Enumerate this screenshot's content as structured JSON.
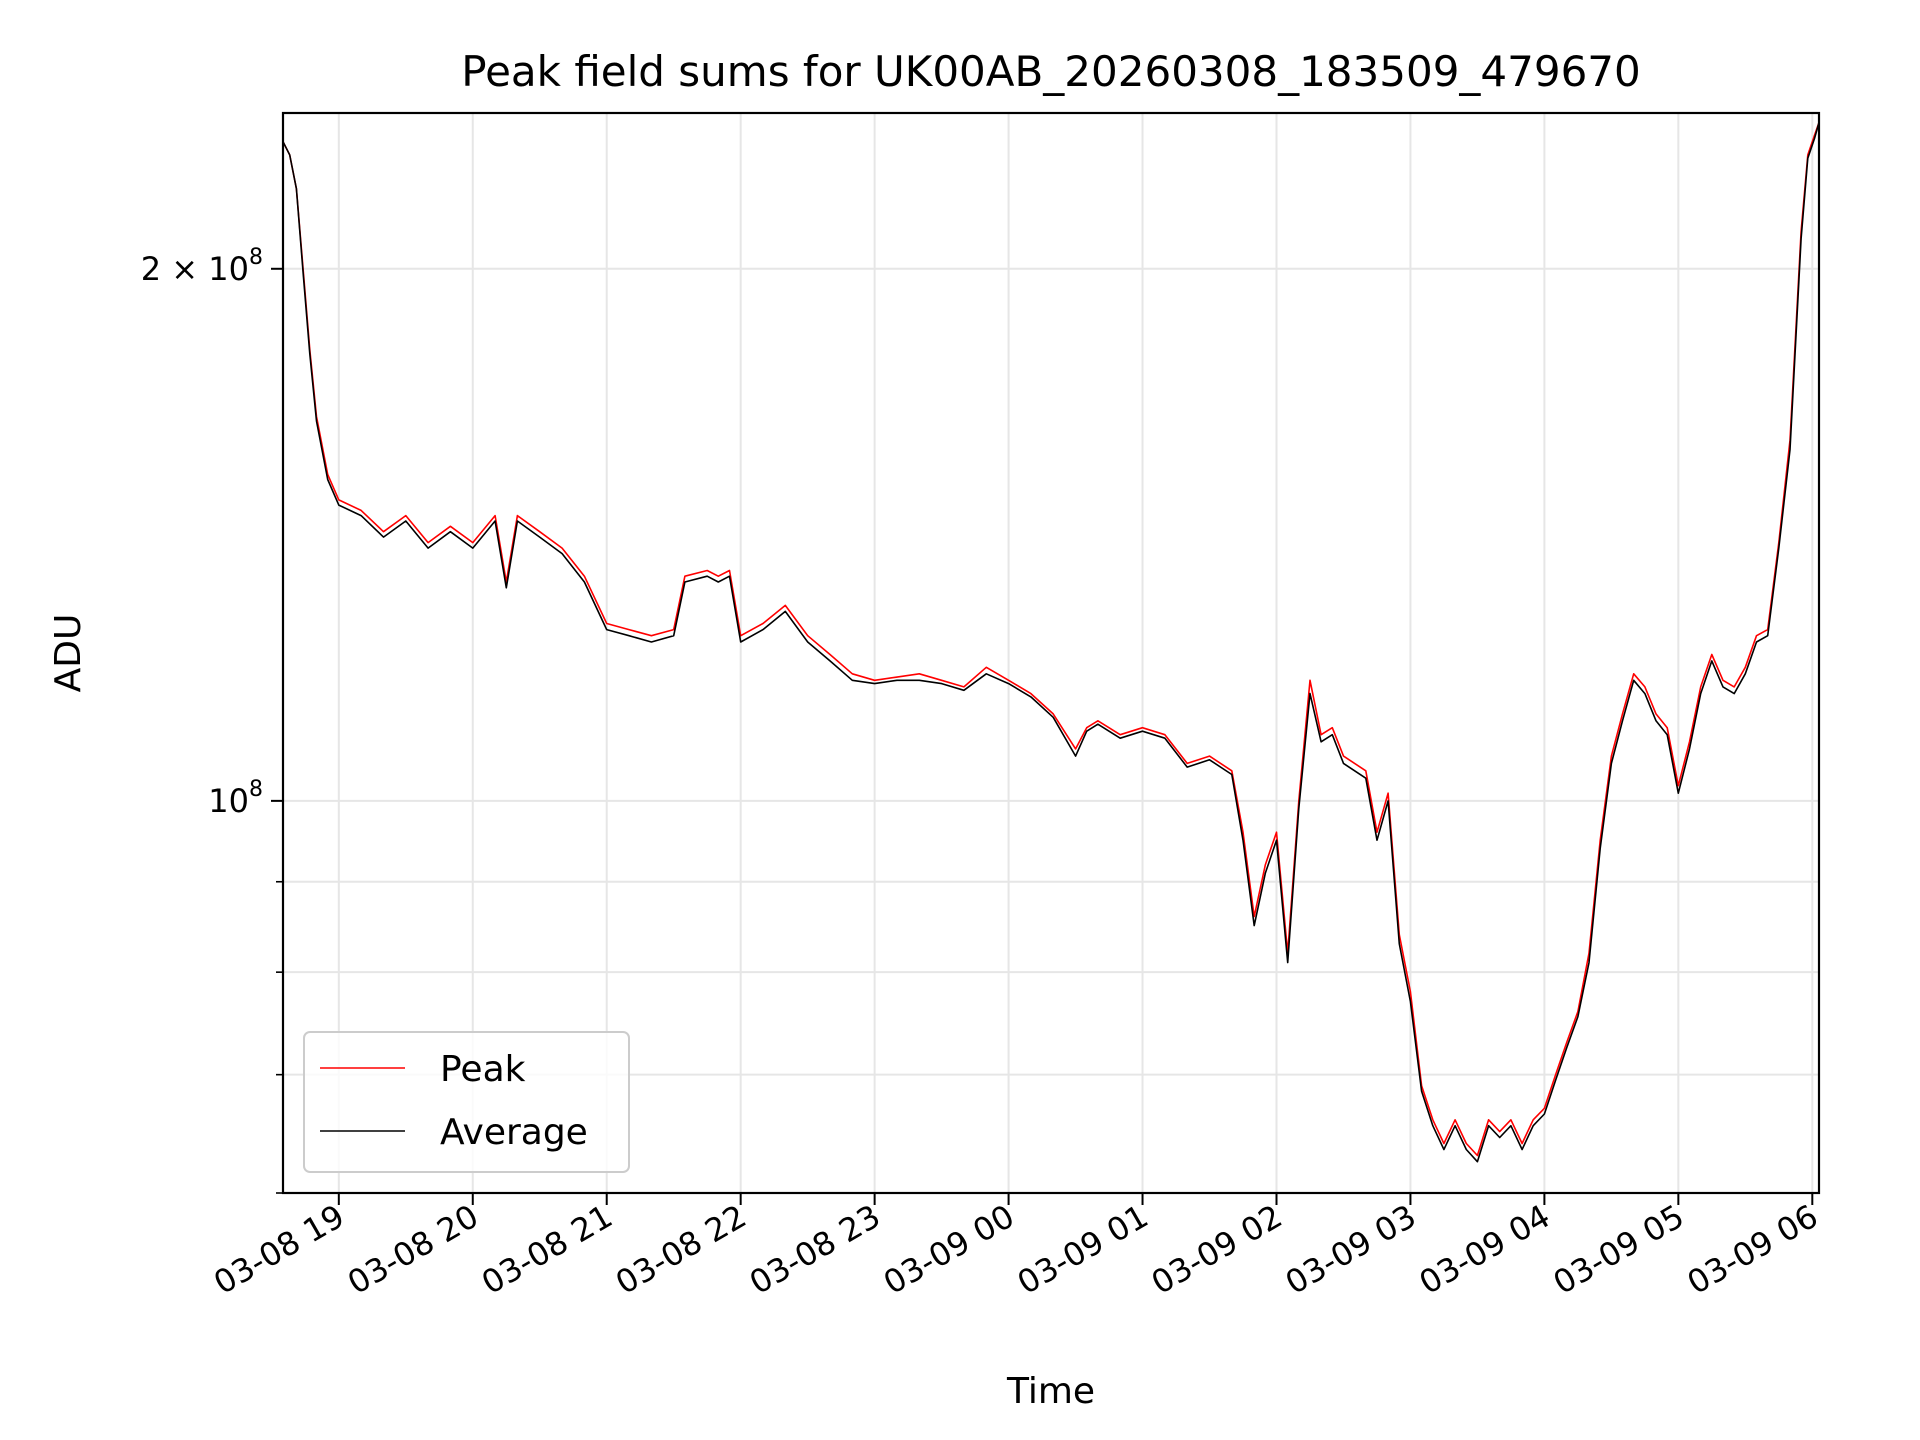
{
  "chart_data": {
    "type": "line",
    "title": "Peak field sums for UK00AB_20260308_183509_479670",
    "xlabel": "Time",
    "ylabel": "ADU",
    "y_scale": "log",
    "xlim": [
      "03-08 18:35",
      "03-09 06:03"
    ],
    "ylim": [
      60000000,
      245000000
    ],
    "x_ticks": [
      "03-08 19",
      "03-08 20",
      "03-08 21",
      "03-08 22",
      "03-08 23",
      "03-09 00",
      "03-09 01",
      "03-09 02",
      "03-09 03",
      "03-09 04",
      "03-09 05",
      "03-09 06"
    ],
    "y_ticks": [
      {
        "value": 200000000,
        "label_base": "2 × 10",
        "label_exp": "8"
      },
      {
        "value": 100000000,
        "label_base": "10",
        "label_exp": "8"
      }
    ],
    "grid": true,
    "legend_position": "lower-left",
    "x": [
      "03-08 18:35",
      "03-08 18:38",
      "03-08 18:41",
      "03-08 18:44",
      "03-08 18:47",
      "03-08 18:50",
      "03-08 18:55",
      "03-08 19:00",
      "03-08 19:10",
      "03-08 19:20",
      "03-08 19:30",
      "03-08 19:40",
      "03-08 19:50",
      "03-08 20:00",
      "03-08 20:10",
      "03-08 20:15",
      "03-08 20:20",
      "03-08 20:30",
      "03-08 20:40",
      "03-08 20:50",
      "03-08 21:00",
      "03-08 21:10",
      "03-08 21:20",
      "03-08 21:30",
      "03-08 21:35",
      "03-08 21:45",
      "03-08 21:50",
      "03-08 21:55",
      "03-08 22:00",
      "03-08 22:10",
      "03-08 22:20",
      "03-08 22:30",
      "03-08 22:40",
      "03-08 22:50",
      "03-08 23:00",
      "03-08 23:10",
      "03-08 23:20",
      "03-08 23:30",
      "03-08 23:40",
      "03-08 23:50",
      "03-09 00:00",
      "03-09 00:10",
      "03-09 00:20",
      "03-09 00:30",
      "03-09 00:35",
      "03-09 00:40",
      "03-09 00:50",
      "03-09 01:00",
      "03-09 01:10",
      "03-09 01:20",
      "03-09 01:30",
      "03-09 01:40",
      "03-09 01:45",
      "03-09 01:50",
      "03-09 01:55",
      "03-09 02:00",
      "03-09 02:05",
      "03-09 02:10",
      "03-09 02:15",
      "03-09 02:20",
      "03-09 02:25",
      "03-09 02:30",
      "03-09 02:40",
      "03-09 02:45",
      "03-09 02:50",
      "03-09 02:55",
      "03-09 03:00",
      "03-09 03:05",
      "03-09 03:10",
      "03-09 03:15",
      "03-09 03:20",
      "03-09 03:25",
      "03-09 03:30",
      "03-09 03:35",
      "03-09 03:40",
      "03-09 03:45",
      "03-09 03:50",
      "03-09 03:55",
      "03-09 04:00",
      "03-09 04:05",
      "03-09 04:10",
      "03-09 04:15",
      "03-09 04:20",
      "03-09 04:25",
      "03-09 04:30",
      "03-09 04:35",
      "03-09 04:40",
      "03-09 04:45",
      "03-09 04:50",
      "03-09 04:55",
      "03-09 05:00",
      "03-09 05:05",
      "03-09 05:10",
      "03-09 05:15",
      "03-09 05:20",
      "03-09 05:25",
      "03-09 05:30",
      "03-09 05:35",
      "03-09 05:40",
      "03-09 05:45",
      "03-09 05:50",
      "03-09 05:55",
      "03-09 05:58",
      "03-09 06:01",
      "03-09 06:03"
    ],
    "series": [
      {
        "name": "Peak",
        "color": "#ff0000",
        "values": [
          236000000,
          232000000,
          222000000,
          200000000,
          180000000,
          165000000,
          153000000,
          148000000,
          146000000,
          142000000,
          145000000,
          140000000,
          143000000,
          140000000,
          145000000,
          133000000,
          145000000,
          142000000,
          139000000,
          134000000,
          126000000,
          125000000,
          124000000,
          125000000,
          134000000,
          135000000,
          134000000,
          135000000,
          124000000,
          126000000,
          129000000,
          124000000,
          121000000,
          118000000,
          117000000,
          117500000,
          118000000,
          117000000,
          116000000,
          119000000,
          117000000,
          115000000,
          112000000,
          107000000,
          110000000,
          111000000,
          109000000,
          110000000,
          109000000,
          105000000,
          106000000,
          104000000,
          96000000,
          86000000,
          92000000,
          96000000,
          82000000,
          100000000,
          117000000,
          109000000,
          110000000,
          106000000,
          104000000,
          96000000,
          101000000,
          84000000,
          78000000,
          69000000,
          66000000,
          64000000,
          66000000,
          64000000,
          63000000,
          66000000,
          65000000,
          66000000,
          64000000,
          66000000,
          67000000,
          70000000,
          73000000,
          76000000,
          82000000,
          95000000,
          106000000,
          112000000,
          118000000,
          116000000,
          112000000,
          110000000,
          102000000,
          108000000,
          116000000,
          121000000,
          117000000,
          116000000,
          119000000,
          124000000,
          125000000,
          140000000,
          160000000,
          210000000,
          232000000,
          238000000,
          242000000
        ]
      },
      {
        "name": "Average",
        "color": "#000000",
        "values": [
          236000000,
          232000000,
          222000000,
          199000000,
          179000000,
          164000000,
          152000000,
          147000000,
          145000000,
          141000000,
          144000000,
          139000000,
          142000000,
          139000000,
          144000000,
          132000000,
          144000000,
          141000000,
          138000000,
          133000000,
          125000000,
          124000000,
          123000000,
          124000000,
          133000000,
          134000000,
          133000000,
          134000000,
          123000000,
          125000000,
          128000000,
          123000000,
          120000000,
          117000000,
          116500000,
          117000000,
          117000000,
          116500000,
          115500000,
          118000000,
          116500000,
          114500000,
          111500000,
          106000000,
          109500000,
          110500000,
          108500000,
          109500000,
          108500000,
          104500000,
          105500000,
          103500000,
          95000000,
          85000000,
          91000000,
          95000000,
          81000000,
          99000000,
          115000000,
          108000000,
          109000000,
          105000000,
          103000000,
          95000000,
          100000000,
          83000000,
          77000000,
          68500000,
          65500000,
          63500000,
          65500000,
          63500000,
          62500000,
          65500000,
          64500000,
          65500000,
          63500000,
          65500000,
          66500000,
          69500000,
          72500000,
          75500000,
          81000000,
          94000000,
          105000000,
          111000000,
          117000000,
          115000000,
          111000000,
          109000000,
          101000000,
          107000000,
          115000000,
          120000000,
          116000000,
          115000000,
          118000000,
          123000000,
          124000000,
          139000000,
          158000000,
          208000000,
          231000000,
          237000000,
          242000000
        ]
      }
    ]
  }
}
